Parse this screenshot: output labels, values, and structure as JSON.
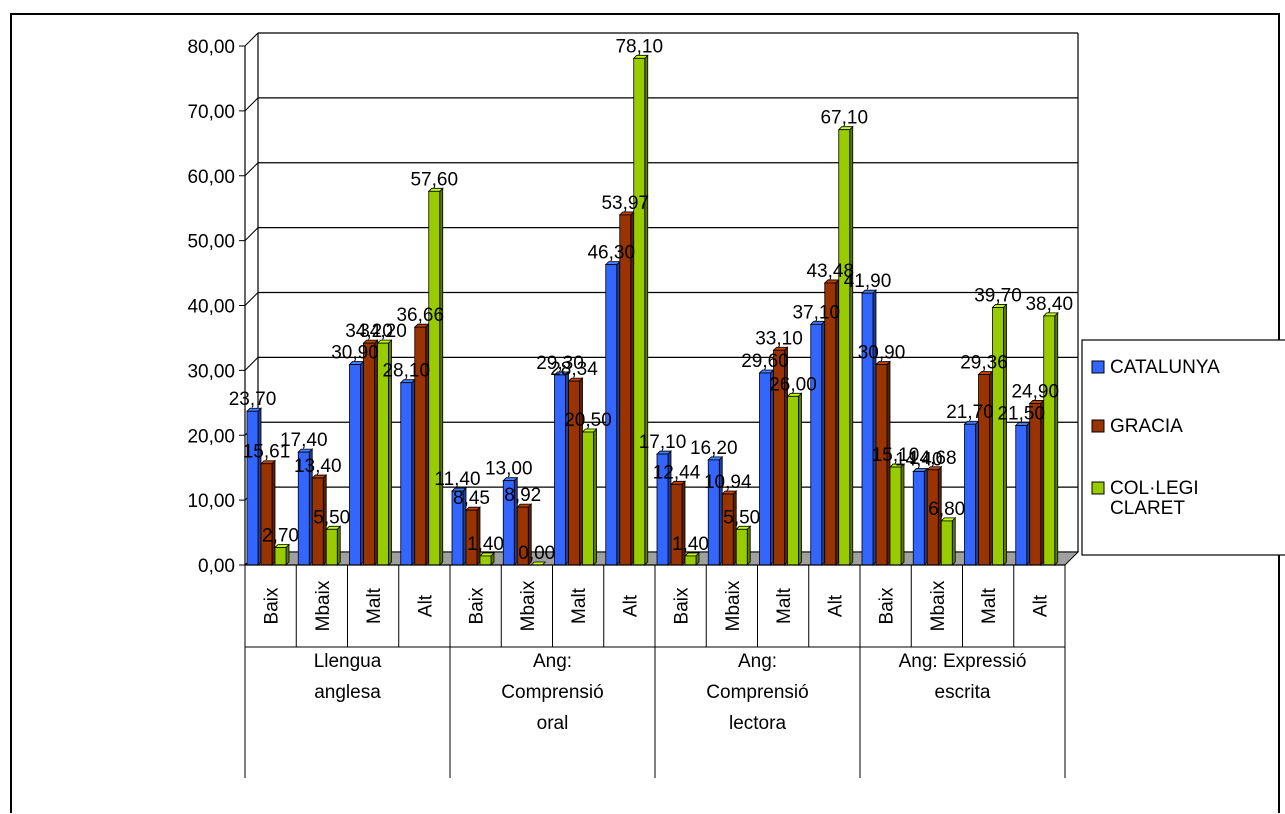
{
  "chart_data": {
    "type": "bar",
    "title": "",
    "xlabel": "",
    "ylabel": "",
    "ylim": [
      0,
      80
    ],
    "yticks": [
      "0,00",
      "10,00",
      "20,00",
      "30,00",
      "40,00",
      "50,00",
      "60,00",
      "70,00",
      "80,00"
    ],
    "grid": true,
    "legend": "right",
    "groups": [
      {
        "label": [
          "Llengua",
          "anglesa"
        ],
        "categories": [
          "Baix",
          "Mbaix",
          "Malt",
          "Alt"
        ]
      },
      {
        "label": [
          "Ang:",
          "Comprensió",
          "oral"
        ],
        "categories": [
          "Baix",
          "Mbaix",
          "Malt",
          "Alt"
        ]
      },
      {
        "label": [
          "Ang:",
          "Comprensió",
          "lectora"
        ],
        "categories": [
          "Baix",
          "Mbaix",
          "Malt",
          "Alt"
        ]
      },
      {
        "label": [
          "Ang: Expressió",
          "escrita"
        ],
        "categories": [
          "Baix",
          "Mbaix",
          "Malt",
          "Alt"
        ]
      }
    ],
    "series": [
      {
        "name": "CATALUNYA",
        "color": "#3366ff",
        "values": [
          23.7,
          17.4,
          30.9,
          28.1,
          11.4,
          13.0,
          29.3,
          46.3,
          17.1,
          16.2,
          29.6,
          37.1,
          41.9,
          14.4,
          21.7,
          21.5
        ],
        "labels": [
          "23,70",
          "17,40",
          "30,90",
          "28,10",
          "11,40",
          "13,00",
          "29,30",
          "46,30",
          "17,10",
          "16,20",
          "29,60",
          "37,10",
          "41,90",
          "14,40",
          "21,70",
          "21,50"
        ]
      },
      {
        "name": "GRACIA",
        "color": "#993300",
        "values": [
          15.61,
          13.4,
          34.2,
          36.66,
          8.45,
          8.92,
          28.34,
          53.97,
          12.44,
          10.94,
          33.1,
          43.48,
          30.9,
          14.68,
          29.36,
          24.9
        ],
        "labels": [
          "15,61",
          "13,40",
          "34,20",
          "36,66",
          "8,45",
          "8,92",
          "28,34",
          "53,97",
          "12,44",
          "10,94",
          "33,10",
          "43,48",
          "30,90",
          "14,68",
          "29,36",
          "24,90"
        ]
      },
      {
        "name": "COL·LEGI CLARET",
        "legend_lines": [
          "COL·LEGI",
          "CLARET"
        ],
        "color": "#99cc00",
        "values": [
          2.7,
          5.5,
          34.2,
          57.6,
          1.4,
          0.0,
          20.5,
          78.1,
          1.4,
          5.5,
          26.0,
          67.1,
          15.1,
          6.8,
          39.7,
          38.4
        ],
        "labels": [
          "2,70",
          "5,50",
          "34,20",
          "57,60",
          "1,40",
          "0,00",
          "20,50",
          "78,10",
          "1,40",
          "5,50",
          "26,00",
          "67,10",
          "15,10",
          "6,80",
          "39,70",
          "38,40"
        ]
      }
    ]
  }
}
